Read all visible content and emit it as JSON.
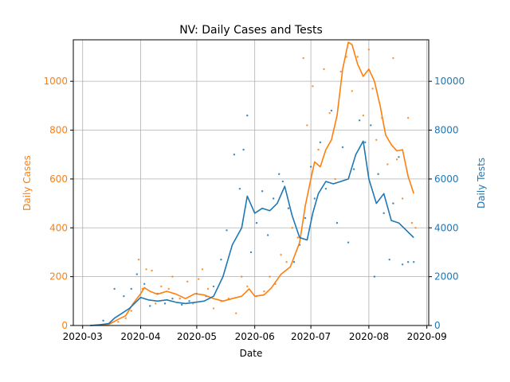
{
  "chart_data": {
    "type": "line",
    "title": "NV: Daily Cases and Tests",
    "xlabel": "Date",
    "ylabel_left": "Daily Cases",
    "ylabel_right": "Daily Tests",
    "x_ticks": [
      "2020-03",
      "2020-04",
      "2020-05",
      "2020-06",
      "2020-07",
      "2020-08",
      "2020-09"
    ],
    "x_range": [
      "2020-02-25",
      "2020-09-02"
    ],
    "y_left_ticks": [
      0,
      200,
      400,
      600,
      800,
      1000
    ],
    "y_left_range": [
      0,
      1170
    ],
    "y_right_ticks": [
      0,
      2000,
      4000,
      6000,
      8000,
      10000
    ],
    "y_right_range": [
      0,
      11700
    ],
    "grid": true,
    "colors": {
      "cases": "#ff7f0e",
      "tests": "#1f77b4"
    },
    "series": [
      {
        "axis": "left",
        "style": "line",
        "values": [
          [
            "2020-03-05",
            0
          ],
          [
            "2020-03-10",
            2
          ],
          [
            "2020-03-15",
            5
          ],
          [
            "2020-03-20",
            25
          ],
          [
            "2020-03-24",
            40
          ],
          [
            "2020-03-28",
            90
          ],
          [
            "2020-04-01",
            130
          ],
          [
            "2020-04-03",
            155
          ],
          [
            "2020-04-06",
            140
          ],
          [
            "2020-04-10",
            128
          ],
          [
            "2020-04-15",
            140
          ],
          [
            "2020-04-20",
            128
          ],
          [
            "2020-04-25",
            110
          ],
          [
            "2020-04-30",
            130
          ],
          [
            "2020-05-05",
            125
          ],
          [
            "2020-05-10",
            110
          ],
          [
            "2020-05-15",
            100
          ],
          [
            "2020-05-20",
            110
          ],
          [
            "2020-05-25",
            120
          ],
          [
            "2020-05-29",
            150
          ],
          [
            "2020-06-01",
            120
          ],
          [
            "2020-06-06",
            125
          ],
          [
            "2020-06-10",
            155
          ],
          [
            "2020-06-15",
            210
          ],
          [
            "2020-06-20",
            240
          ],
          [
            "2020-06-25",
            340
          ],
          [
            "2020-06-28",
            490
          ],
          [
            "2020-07-01",
            600
          ],
          [
            "2020-07-03",
            670
          ],
          [
            "2020-07-06",
            650
          ],
          [
            "2020-07-09",
            720
          ],
          [
            "2020-07-12",
            760
          ],
          [
            "2020-07-15",
            860
          ],
          [
            "2020-07-18",
            1050
          ],
          [
            "2020-07-21",
            1160
          ],
          [
            "2020-07-23",
            1150
          ],
          [
            "2020-07-26",
            1070
          ],
          [
            "2020-07-29",
            1020
          ],
          [
            "2020-08-01",
            1050
          ],
          [
            "2020-08-04",
            1000
          ],
          [
            "2020-08-07",
            900
          ],
          [
            "2020-08-10",
            780
          ],
          [
            "2020-08-13",
            740
          ],
          [
            "2020-08-16",
            715
          ],
          [
            "2020-08-19",
            720
          ],
          [
            "2020-08-22",
            610
          ],
          [
            "2020-08-25",
            540
          ]
        ]
      },
      {
        "axis": "right",
        "style": "line",
        "values": [
          [
            "2020-03-05",
            0
          ],
          [
            "2020-03-10",
            30
          ],
          [
            "2020-03-15",
            80
          ],
          [
            "2020-03-18",
            300
          ],
          [
            "2020-03-22",
            500
          ],
          [
            "2020-03-26",
            700
          ],
          [
            "2020-03-30",
            1000
          ],
          [
            "2020-04-01",
            1150
          ],
          [
            "2020-04-05",
            1050
          ],
          [
            "2020-04-10",
            1000
          ],
          [
            "2020-04-15",
            1050
          ],
          [
            "2020-04-20",
            950
          ],
          [
            "2020-04-25",
            900
          ],
          [
            "2020-04-30",
            950
          ],
          [
            "2020-05-05",
            1000
          ],
          [
            "2020-05-10",
            1200
          ],
          [
            "2020-05-15",
            2000
          ],
          [
            "2020-05-20",
            3300
          ],
          [
            "2020-05-25",
            4000
          ],
          [
            "2020-05-28",
            5300
          ],
          [
            "2020-06-01",
            4600
          ],
          [
            "2020-06-05",
            4800
          ],
          [
            "2020-06-09",
            4700
          ],
          [
            "2020-06-13",
            5000
          ],
          [
            "2020-06-17",
            5700
          ],
          [
            "2020-06-21",
            4500
          ],
          [
            "2020-06-25",
            3600
          ],
          [
            "2020-06-29",
            3500
          ],
          [
            "2020-07-02",
            4600
          ],
          [
            "2020-07-05",
            5400
          ],
          [
            "2020-07-09",
            5900
          ],
          [
            "2020-07-13",
            5800
          ],
          [
            "2020-07-17",
            5900
          ],
          [
            "2020-07-21",
            6000
          ],
          [
            "2020-07-25",
            7000
          ],
          [
            "2020-07-29",
            7550
          ],
          [
            "2020-08-01",
            6000
          ],
          [
            "2020-08-05",
            5000
          ],
          [
            "2020-08-09",
            5400
          ],
          [
            "2020-08-13",
            4300
          ],
          [
            "2020-08-17",
            4200
          ],
          [
            "2020-08-21",
            3900
          ],
          [
            "2020-08-25",
            3600
          ]
        ]
      },
      {
        "axis": "left",
        "style": "scatter",
        "values": [
          [
            "2020-03-15",
            8
          ],
          [
            "2020-03-20",
            15
          ],
          [
            "2020-03-24",
            30
          ],
          [
            "2020-03-27",
            60
          ],
          [
            "2020-03-31",
            270
          ],
          [
            "2020-04-02",
            150
          ],
          [
            "2020-04-04",
            230
          ],
          [
            "2020-04-07",
            225
          ],
          [
            "2020-04-09",
            90
          ],
          [
            "2020-04-12",
            160
          ],
          [
            "2020-04-16",
            150
          ],
          [
            "2020-04-18",
            200
          ],
          [
            "2020-04-22",
            110
          ],
          [
            "2020-04-26",
            180
          ],
          [
            "2020-04-29",
            90
          ],
          [
            "2020-05-02",
            190
          ],
          [
            "2020-05-04",
            230
          ],
          [
            "2020-05-07",
            150
          ],
          [
            "2020-05-10",
            70
          ],
          [
            "2020-05-14",
            100
          ],
          [
            "2020-05-18",
            110
          ],
          [
            "2020-05-22",
            50
          ],
          [
            "2020-05-25",
            200
          ],
          [
            "2020-05-28",
            160
          ],
          [
            "2020-06-02",
            120
          ],
          [
            "2020-06-06",
            140
          ],
          [
            "2020-06-09",
            200
          ],
          [
            "2020-06-12",
            170
          ],
          [
            "2020-06-15",
            290
          ],
          [
            "2020-06-18",
            260
          ],
          [
            "2020-06-21",
            400
          ],
          [
            "2020-06-24",
            360
          ],
          [
            "2020-06-27",
            1095
          ],
          [
            "2020-06-29",
            820
          ],
          [
            "2020-07-02",
            980
          ],
          [
            "2020-07-05",
            720
          ],
          [
            "2020-07-08",
            1050
          ],
          [
            "2020-07-11",
            870
          ],
          [
            "2020-07-14",
            600
          ],
          [
            "2020-07-17",
            1040
          ],
          [
            "2020-07-20",
            1100
          ],
          [
            "2020-07-23",
            960
          ],
          [
            "2020-07-26",
            1100
          ],
          [
            "2020-07-29",
            860
          ],
          [
            "2020-08-01",
            1130
          ],
          [
            "2020-08-03",
            970
          ],
          [
            "2020-08-05",
            760
          ],
          [
            "2020-08-08",
            850
          ],
          [
            "2020-08-11",
            660
          ],
          [
            "2020-08-14",
            1095
          ],
          [
            "2020-08-16",
            680
          ],
          [
            "2020-08-19",
            520
          ],
          [
            "2020-08-22",
            850
          ],
          [
            "2020-08-24",
            420
          ],
          [
            "2020-08-26",
            400
          ]
        ]
      },
      {
        "axis": "right",
        "style": "scatter",
        "values": [
          [
            "2020-03-12",
            200
          ],
          [
            "2020-03-18",
            1500
          ],
          [
            "2020-03-23",
            1200
          ],
          [
            "2020-03-27",
            1500
          ],
          [
            "2020-03-30",
            2100
          ],
          [
            "2020-04-03",
            1700
          ],
          [
            "2020-04-06",
            800
          ],
          [
            "2020-04-10",
            1300
          ],
          [
            "2020-04-14",
            900
          ],
          [
            "2020-04-18",
            1100
          ],
          [
            "2020-04-23",
            850
          ],
          [
            "2020-04-27",
            1000
          ],
          [
            "2020-05-01",
            1300
          ],
          [
            "2020-05-06",
            1200
          ],
          [
            "2020-05-10",
            1600
          ],
          [
            "2020-05-14",
            2700
          ],
          [
            "2020-05-17",
            3900
          ],
          [
            "2020-05-21",
            7000
          ],
          [
            "2020-05-24",
            5600
          ],
          [
            "2020-05-26",
            7200
          ],
          [
            "2020-05-28",
            8600
          ],
          [
            "2020-05-30",
            3000
          ],
          [
            "2020-06-02",
            4200
          ],
          [
            "2020-06-05",
            5500
          ],
          [
            "2020-06-08",
            3700
          ],
          [
            "2020-06-11",
            5200
          ],
          [
            "2020-06-14",
            6200
          ],
          [
            "2020-06-16",
            5900
          ],
          [
            "2020-06-19",
            4800
          ],
          [
            "2020-06-22",
            2600
          ],
          [
            "2020-06-25",
            3300
          ],
          [
            "2020-06-28",
            4400
          ],
          [
            "2020-07-01",
            6500
          ],
          [
            "2020-07-03",
            5200
          ],
          [
            "2020-07-06",
            7500
          ],
          [
            "2020-07-09",
            5600
          ],
          [
            "2020-07-12",
            8800
          ],
          [
            "2020-07-15",
            4200
          ],
          [
            "2020-07-18",
            7300
          ],
          [
            "2020-07-21",
            3400
          ],
          [
            "2020-07-24",
            6400
          ],
          [
            "2020-07-27",
            8400
          ],
          [
            "2020-07-30",
            7500
          ],
          [
            "2020-08-02",
            8200
          ],
          [
            "2020-08-04",
            2000
          ],
          [
            "2020-08-06",
            6200
          ],
          [
            "2020-08-09",
            4600
          ],
          [
            "2020-08-12",
            2700
          ],
          [
            "2020-08-14",
            5000
          ],
          [
            "2020-08-17",
            6900
          ],
          [
            "2020-08-19",
            2500
          ],
          [
            "2020-08-22",
            2600
          ],
          [
            "2020-08-25",
            2600
          ]
        ]
      }
    ]
  }
}
